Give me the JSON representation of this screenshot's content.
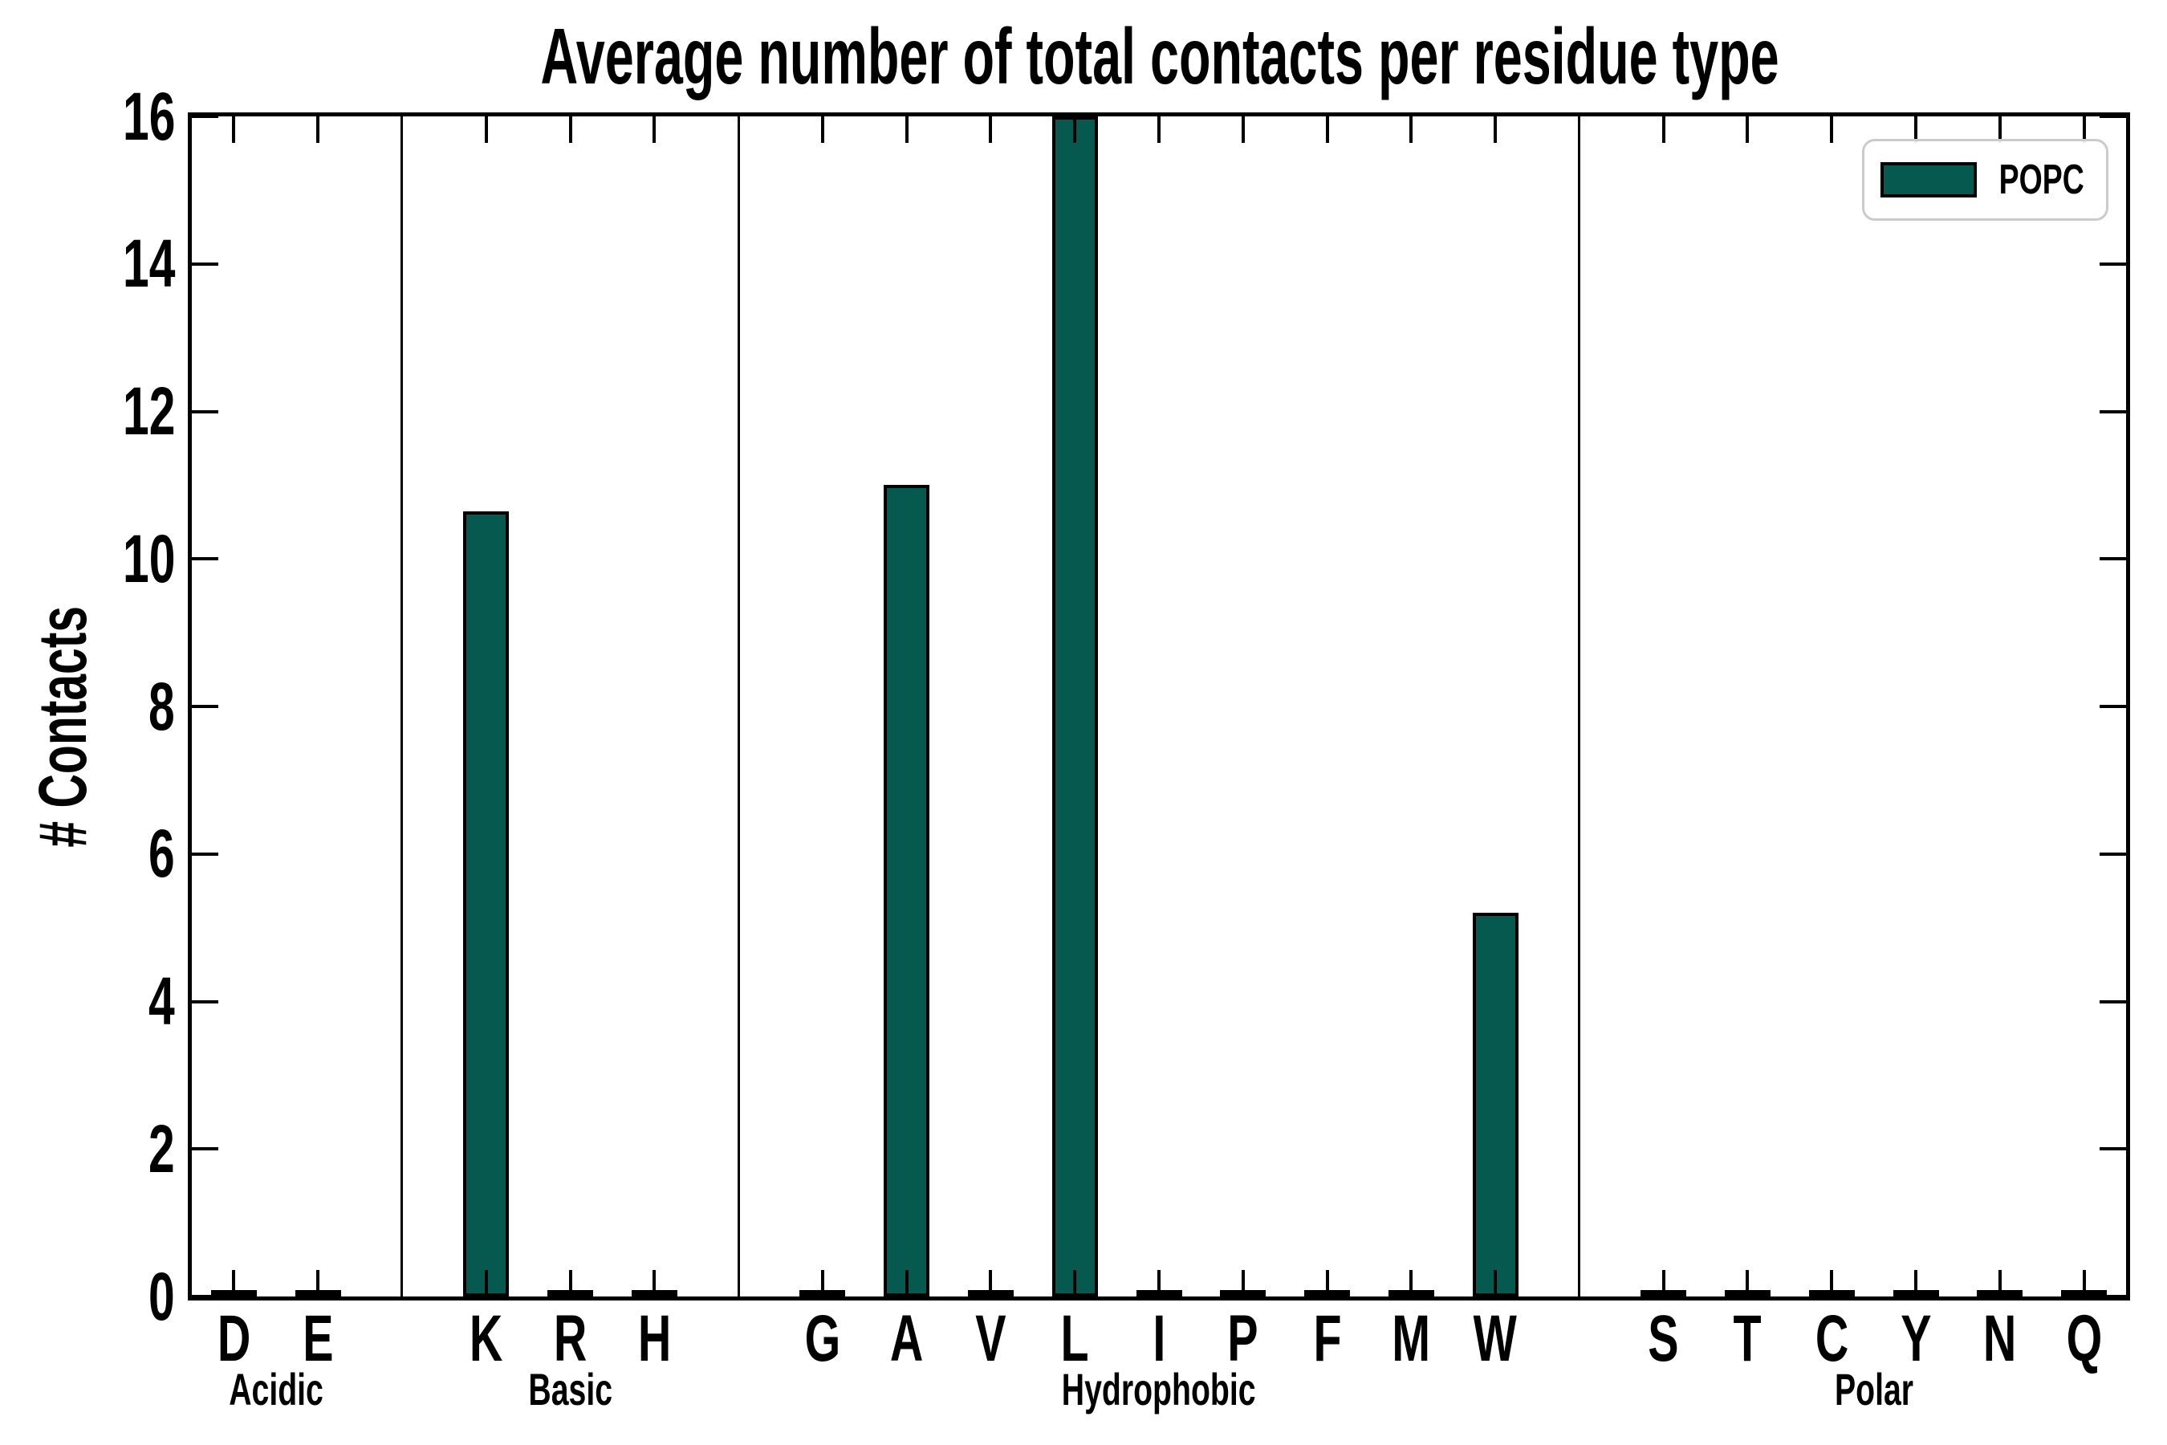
{
  "figure": {
    "title": "Average number of total contacts per residue type",
    "ylabel": "# Contacts"
  },
  "legend": {
    "label": "POPC",
    "swatch_color": "#06594E"
  },
  "colors": {
    "bar_fill": "#06594E",
    "bar_edge": "#000000",
    "axis": "#000000",
    "legend_border": "#cbcbcb"
  },
  "chart_data": {
    "type": "bar",
    "title": "Average number of total contacts per residue type",
    "xlabel": "",
    "ylabel": "# Contacts",
    "ylim": [
      0,
      16
    ],
    "yticks": [
      0,
      2,
      4,
      6,
      8,
      10,
      12,
      14,
      16
    ],
    "grid": false,
    "legend_position": "upper right",
    "series_name": "POPC",
    "categories": [
      "D",
      "E",
      "K",
      "R",
      "H",
      "G",
      "A",
      "V",
      "L",
      "I",
      "P",
      "F",
      "M",
      "W",
      "S",
      "T",
      "C",
      "Y",
      "N",
      "Q"
    ],
    "values": [
      0.05,
      0.05,
      10.65,
      0.05,
      0.05,
      0.05,
      11.0,
      0.05,
      16.0,
      0.05,
      0.05,
      0.05,
      0.05,
      5.2,
      0.05,
      0.05,
      0.05,
      0.05,
      0.05,
      0.05
    ],
    "groups": [
      {
        "label": "Acidic",
        "residues": [
          "D",
          "E"
        ]
      },
      {
        "label": "Basic",
        "residues": [
          "K",
          "R",
          "H"
        ]
      },
      {
        "label": "Hydrophobic",
        "residues": [
          "G",
          "A",
          "V",
          "L",
          "I",
          "P",
          "F",
          "M",
          "W"
        ]
      },
      {
        "label": "Polar",
        "residues": [
          "S",
          "T",
          "C",
          "Y",
          "N",
          "Q"
        ]
      }
    ]
  }
}
